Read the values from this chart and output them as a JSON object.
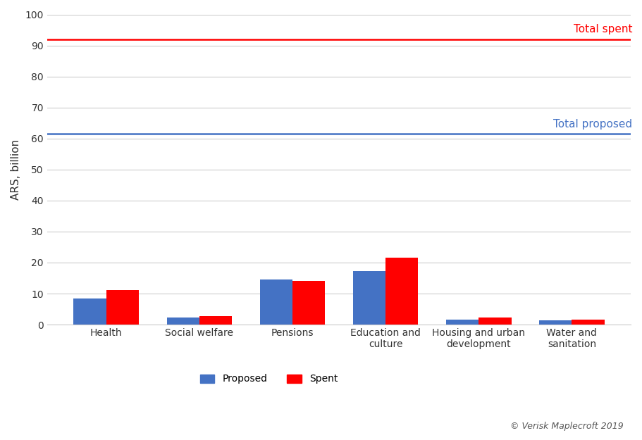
{
  "categories": [
    "Health",
    "Social welfare",
    "Pensions",
    "Education and\nculture",
    "Housing and urban\ndevelopment",
    "Water and\nsanitation"
  ],
  "proposed": [
    8.5,
    2.2,
    14.5,
    17.2,
    1.7,
    1.3
  ],
  "spent": [
    11.2,
    2.8,
    14.2,
    21.5,
    2.2,
    1.6
  ],
  "proposed_color": "#4472c4",
  "spent_color": "#ff0000",
  "total_proposed": 61.5,
  "total_spent": 92.0,
  "total_proposed_color": "#4472c4",
  "total_spent_color": "#ff0000",
  "total_proposed_label": "Total proposed",
  "total_spent_label": "Total spent",
  "ylabel": "ARS, billion",
  "ylim": [
    0,
    100
  ],
  "yticks": [
    0,
    10,
    20,
    30,
    40,
    50,
    60,
    70,
    80,
    90,
    100
  ],
  "legend_proposed": "Proposed",
  "legend_spent": "Spent",
  "copyright": "© Verisk Maplecroft 2019",
  "background_color": "#ffffff",
  "bar_width": 0.35
}
